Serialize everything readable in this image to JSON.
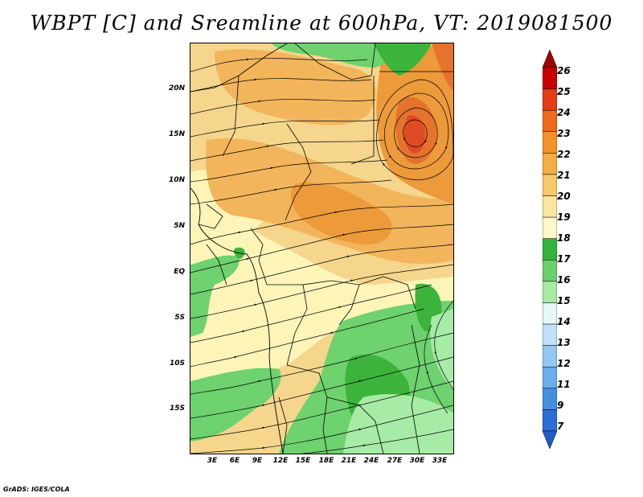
{
  "title": "WBPT [C] and Sreamline at 600hPa, VT: 2019081500",
  "credit": "GrADS: IGES/COLA",
  "map": {
    "lat_labels": [
      "20N",
      "15N",
      "10N",
      "5N",
      "EQ",
      "5S",
      "10S",
      "15S"
    ],
    "lon_labels": [
      "3E",
      "6E",
      "9E",
      "12E",
      "15E",
      "18E",
      "21E",
      "24E",
      "27E",
      "30E",
      "33E"
    ],
    "fill_colors": {
      "dark_green": "#3cb43c",
      "green": "#6ed26e",
      "light_green": "#a6eba6",
      "cream": "#fdf5b8",
      "tan": "#f5d68c",
      "light_orange": "#f2b55c",
      "orange": "#ec9a3a",
      "dark_orange": "#e5732d",
      "red_orange": "#df4b22"
    }
  },
  "colorbar": {
    "labels": [
      "26",
      "25",
      "24",
      "23",
      "22",
      "21",
      "20",
      "19",
      "18",
      "17",
      "16",
      "15",
      "14",
      "13",
      "12",
      "11",
      "9",
      "7"
    ],
    "colors": [
      "#a00000",
      "#c80000",
      "#e43c14",
      "#ef6a1a",
      "#f4922a",
      "#f5ae44",
      "#f8c96a",
      "#fbe6a0",
      "#fef8c8",
      "#33b33a",
      "#6ccf6c",
      "#a7eaa4",
      "#e6f8f8",
      "#bfe0f8",
      "#93c8f2",
      "#6aaeea",
      "#4490e0",
      "#2a6ed6",
      "#1e5cc8"
    ]
  }
}
